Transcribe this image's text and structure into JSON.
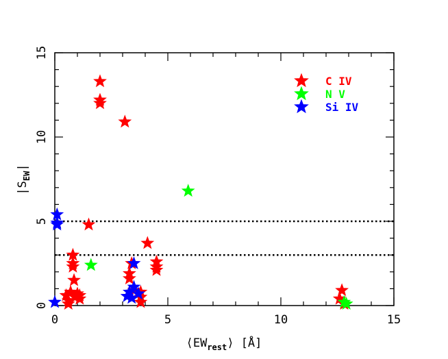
{
  "chart_data": {
    "type": "scatter",
    "xlim": [
      0,
      15
    ],
    "ylim": [
      0,
      15
    ],
    "xticks": [
      0,
      5,
      10,
      15
    ],
    "yticks": [
      0,
      5,
      10,
      15
    ],
    "xtick_labels": [
      "0",
      "5",
      "10",
      "15"
    ],
    "ytick_labels": [
      "0",
      "5",
      "10",
      "15"
    ],
    "xlabel": {
      "left": "⟨EW",
      "sub": "rest",
      "right": "⟩ [Å]"
    },
    "ylabel": {
      "left": "|S",
      "sub": "EW",
      "right": "|"
    },
    "hlines": [
      5,
      3
    ],
    "legend_position": "top-right",
    "series": [
      {
        "name": "C IV",
        "color": "#ff0000",
        "filled": true,
        "points": [
          [
            2.0,
            13.3
          ],
          [
            2.0,
            12.2
          ],
          [
            2.0,
            12.0
          ],
          [
            3.1,
            10.9
          ],
          [
            1.5,
            4.8
          ],
          [
            0.8,
            3.0
          ],
          [
            0.8,
            2.5
          ],
          [
            0.8,
            2.3
          ],
          [
            0.85,
            1.5
          ],
          [
            0.5,
            0.6
          ],
          [
            0.6,
            0.3
          ],
          [
            0.6,
            0.1
          ],
          [
            0.7,
            0.8
          ],
          [
            0.9,
            0.5
          ],
          [
            1.0,
            0.7
          ],
          [
            1.1,
            0.4
          ],
          [
            1.1,
            0.6
          ],
          [
            3.4,
            2.5
          ],
          [
            3.3,
            1.9
          ],
          [
            3.3,
            1.6
          ],
          [
            3.5,
            0.9
          ],
          [
            3.8,
            0.8
          ],
          [
            3.8,
            0.5
          ],
          [
            3.8,
            0.2
          ],
          [
            4.1,
            3.7
          ],
          [
            4.5,
            2.6
          ],
          [
            4.5,
            2.3
          ],
          [
            4.5,
            2.1
          ],
          [
            12.7,
            0.9
          ],
          [
            12.6,
            0.4
          ],
          [
            12.8,
            0.1
          ]
        ]
      },
      {
        "name": "N V",
        "color": "#00ff00",
        "filled": true,
        "points": [
          [
            5.9,
            6.8
          ],
          [
            1.6,
            2.4
          ],
          [
            12.8,
            0.2
          ],
          [
            12.9,
            0.1
          ]
        ]
      },
      {
        "name": "Si IV",
        "color": "#0000ff",
        "filled": true,
        "points": [
          [
            0.1,
            5.4
          ],
          [
            0.1,
            4.9
          ],
          [
            0.1,
            4.8
          ],
          [
            0.0,
            0.2
          ],
          [
            3.5,
            2.5
          ],
          [
            3.5,
            1.1
          ],
          [
            3.3,
            0.8
          ],
          [
            3.2,
            0.55
          ],
          [
            3.4,
            0.45
          ],
          [
            3.7,
            0.7
          ]
        ]
      }
    ]
  }
}
